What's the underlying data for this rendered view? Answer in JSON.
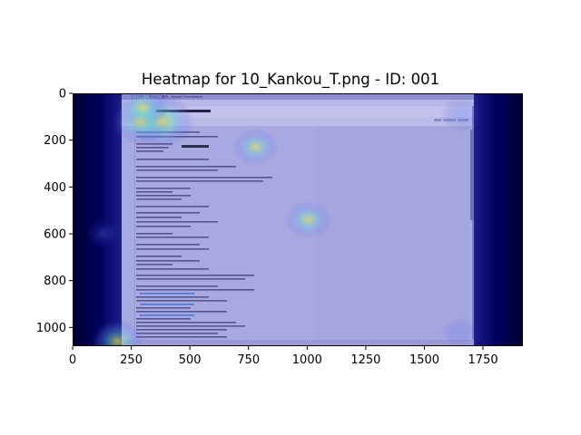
{
  "chart_data": {
    "type": "heatmap",
    "title": "Heatmap for 10_Kankou_T.png - ID: 001",
    "xlabel": "",
    "ylabel": "",
    "xlim": [
      0,
      1920
    ],
    "ylim": [
      1080,
      0
    ],
    "x_ticks": [
      0,
      250,
      500,
      750,
      1000,
      1250,
      1500,
      1750
    ],
    "y_ticks": [
      0,
      200,
      400,
      600,
      800,
      1000
    ],
    "grid": false,
    "colormap": "jet",
    "background_image": {
      "x_range": [
        210,
        1710
      ],
      "y_range": [
        0,
        1080
      ],
      "window_title": "【ご注意】ご宿泊のご案内 - Mozilla Thunderbird"
    },
    "hotspots": [
      {
        "x": 380,
        "y": 120,
        "value": 0.55
      },
      {
        "x": 290,
        "y": 120,
        "value": 0.45
      },
      {
        "x": 300,
        "y": 60,
        "value": 0.35
      },
      {
        "x": 780,
        "y": 230,
        "value": 0.3
      },
      {
        "x": 1005,
        "y": 540,
        "value": 0.3
      },
      {
        "x": 1660,
        "y": 90,
        "value": 0.25
      },
      {
        "x": 190,
        "y": 1060,
        "value": 0.4
      },
      {
        "x": 130,
        "y": 600,
        "value": 0.15
      },
      {
        "x": 1650,
        "y": 1020,
        "value": 0.15
      }
    ]
  },
  "colors": {
    "cold": "#00007f",
    "warm": "#ffff00",
    "hot": "#ff3300",
    "overlay": "#a8a8e0"
  }
}
